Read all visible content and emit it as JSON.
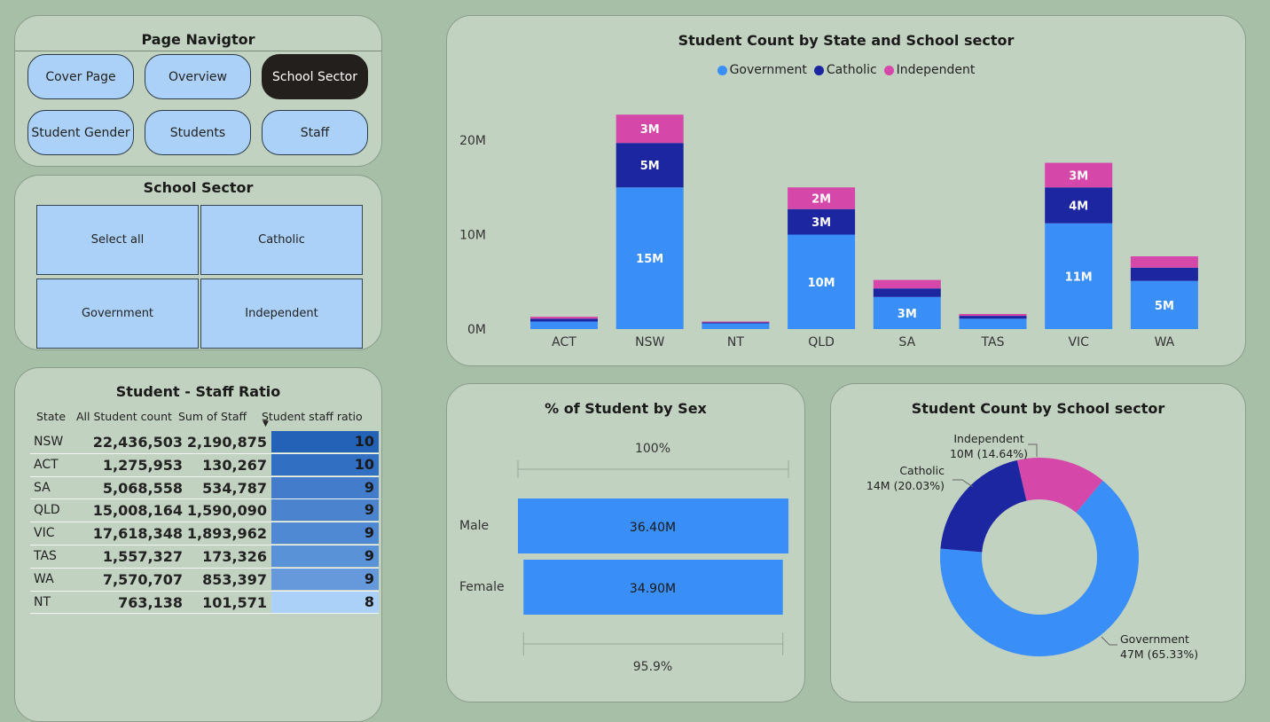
{
  "navigator": {
    "title": "Page Navigtor",
    "buttons": [
      "Cover Page",
      "Overview",
      "School Sector",
      "Student Gender",
      "Students",
      "Staff"
    ],
    "active": "School Sector"
  },
  "slicer": {
    "title": "School Sector",
    "options": [
      "Select all",
      "Catholic",
      "Government",
      "Independent"
    ]
  },
  "ratio_table": {
    "title": "Student - Staff Ratio",
    "headers": [
      "State",
      "All Student count",
      "Sum of Staff",
      "Student staff ratio"
    ],
    "rows": [
      {
        "state": "NSW",
        "students": "22,436,503",
        "staff": "2,190,875",
        "ratio": "10",
        "shade": "#2462b7"
      },
      {
        "state": "ACT",
        "students": "1,275,953",
        "staff": "130,267",
        "ratio": "10",
        "shade": "#316fc2"
      },
      {
        "state": "SA",
        "students": "5,068,558",
        "staff": "534,787",
        "ratio": "9",
        "shade": "#427ccb"
      },
      {
        "state": "QLD",
        "students": "15,008,164",
        "staff": "1,590,090",
        "ratio": "9",
        "shade": "#4b83cf"
      },
      {
        "state": "VIC",
        "students": "17,618,348",
        "staff": "1,893,962",
        "ratio": "9",
        "shade": "#5089d3"
      },
      {
        "state": "TAS",
        "students": "1,557,327",
        "staff": "173,326",
        "ratio": "9",
        "shade": "#5a92d8"
      },
      {
        "state": "WA",
        "students": "7,570,707",
        "staff": "853,397",
        "ratio": "9",
        "shade": "#6699db"
      },
      {
        "state": "NT",
        "students": "763,138",
        "staff": "101,571",
        "ratio": "8",
        "shade": "#abd1f8"
      }
    ]
  },
  "colors": {
    "government": "#3a8ef7",
    "catholic": "#1c26a0",
    "independent": "#d547a8"
  },
  "chart_data": [
    {
      "type": "bar",
      "stacked": true,
      "title": "Student Count by State and School sector",
      "categories": [
        "ACT",
        "NSW",
        "NT",
        "QLD",
        "SA",
        "TAS",
        "VIC",
        "WA"
      ],
      "series": [
        {
          "name": "Government",
          "values": [
            0.8,
            15,
            0.6,
            10,
            3.4,
            1.1,
            11.2,
            5.1
          ],
          "labels": [
            "",
            "15M",
            "",
            "10M",
            "3M",
            "",
            "11M",
            "5M"
          ]
        },
        {
          "name": "Catholic",
          "values": [
            0.3,
            4.7,
            0.1,
            2.7,
            0.9,
            0.3,
            3.8,
            1.4
          ],
          "labels": [
            "",
            "5M",
            "",
            "3M",
            "",
            "",
            "4M",
            ""
          ]
        },
        {
          "name": "Independent",
          "values": [
            0.2,
            3.0,
            0.1,
            2.3,
            0.9,
            0.2,
            2.6,
            1.2
          ],
          "labels": [
            "",
            "3M",
            "",
            "2M",
            "",
            "",
            "3M",
            ""
          ]
        }
      ],
      "yticks": [
        "0M",
        "10M",
        "20M"
      ],
      "ylim": [
        0,
        25
      ],
      "legend": "top"
    },
    {
      "type": "bar",
      "orientation": "horizontal",
      "title": "% of Student by Sex",
      "categories": [
        "Male",
        "Female"
      ],
      "values": [
        36.4,
        34.9
      ],
      "labels": [
        "36.40M",
        "34.90M"
      ],
      "top_label": "100%",
      "bottom_label": "95.9%"
    },
    {
      "type": "pie",
      "donut": true,
      "title": "Student Count by School sector",
      "slices": [
        {
          "name": "Independent",
          "label": "Independent",
          "value_label": "10M (14.64%)",
          "percent": 14.64
        },
        {
          "name": "Government",
          "label": "Government",
          "value_label": "47M (65.33%)",
          "percent": 65.33
        },
        {
          "name": "Catholic",
          "label": "Catholic",
          "value_label": "14M (20.03%)",
          "percent": 20.03
        }
      ]
    }
  ]
}
